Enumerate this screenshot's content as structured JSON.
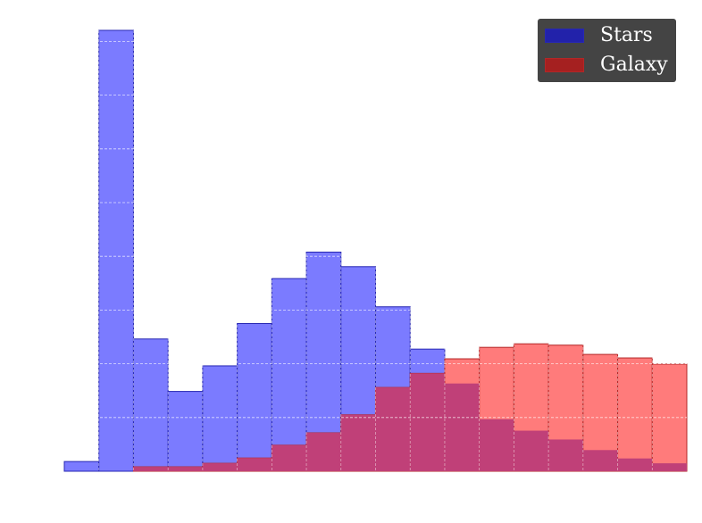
{
  "chart_data": {
    "type": "bar",
    "subtype": "overlapping-histogram",
    "title": "",
    "xlabel": "",
    "ylabel": "",
    "x_ticks_visible": false,
    "y_ticks_visible": false,
    "bins": 18,
    "ylim": [
      0,
      1000
    ],
    "grid": true,
    "grid_style": "dashed-white",
    "legend_position": "top-right",
    "series": [
      {
        "name": "Stars",
        "color": "#7b7bff",
        "edge_color": "#2727b3",
        "legend_color": "#2222aa",
        "values": [
          22,
          1000,
          300,
          181,
          239,
          335,
          437,
          497,
          464,
          373,
          277,
          199,
          118,
          92,
          72,
          48,
          29,
          18
        ]
      },
      {
        "name": "Galaxy",
        "color": "#ff7b7b",
        "edge_color": "#b32727",
        "legend_color": "#a52020",
        "values": [
          0,
          0,
          10,
          10,
          18,
          30,
          59,
          87,
          128,
          190,
          222,
          255,
          281,
          289,
          286,
          265,
          257,
          243
        ]
      }
    ],
    "overlap_color": "#c04078"
  }
}
